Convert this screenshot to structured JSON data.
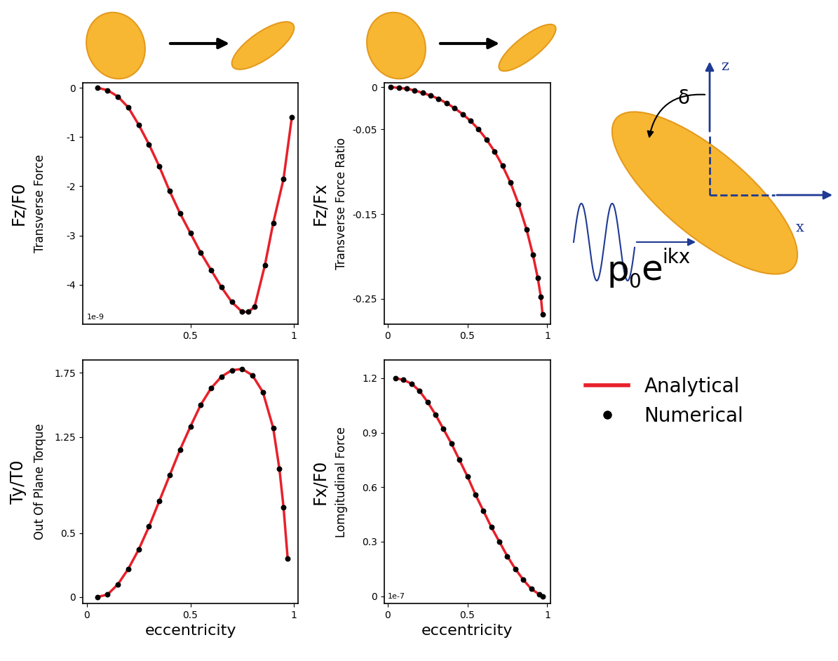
{
  "chart_data": [
    {
      "type": "line",
      "y_quantity": "Fz/F0",
      "ylabel": "Transverse Force",
      "annotation": "1e-9",
      "x": [
        0.05,
        0.1,
        0.15,
        0.2,
        0.25,
        0.3,
        0.35,
        0.4,
        0.45,
        0.5,
        0.55,
        0.6,
        0.65,
        0.7,
        0.75,
        0.78,
        0.81,
        0.86,
        0.9,
        0.95,
        0.99
      ],
      "series": [
        {
          "name": "Analytical",
          "type": "line",
          "color": "#e8202a",
          "values": [
            0,
            -0.05,
            -0.18,
            -0.4,
            -0.75,
            -1.15,
            -1.6,
            -2.1,
            -2.55,
            -2.95,
            -3.35,
            -3.7,
            -4.05,
            -4.35,
            -4.55,
            -4.55,
            -4.45,
            -3.6,
            -2.75,
            -1.85,
            -0.6
          ]
        },
        {
          "name": "Numerical",
          "type": "scatter",
          "color": "#000000",
          "marker": "o",
          "values": [
            0,
            -0.05,
            -0.18,
            -0.4,
            -0.75,
            -1.15,
            -1.6,
            -2.1,
            -2.55,
            -2.95,
            -3.35,
            -3.7,
            -4.05,
            -4.35,
            -4.55,
            -4.55,
            -4.45,
            -3.6,
            -2.75,
            -1.85,
            -0.6
          ]
        }
      ],
      "xlim": [
        -0.02,
        1.02
      ],
      "xticks": [
        0.5,
        1
      ],
      "ylim": [
        -4.8,
        0.1
      ],
      "yticks": [
        0,
        -1,
        -2,
        -3,
        -4
      ]
    },
    {
      "type": "line",
      "y_quantity": "Fz/Fx",
      "ylabel": "Transverse Force Ratio",
      "x": [
        0.02,
        0.07,
        0.12,
        0.17,
        0.22,
        0.27,
        0.32,
        0.37,
        0.42,
        0.47,
        0.52,
        0.57,
        0.62,
        0.67,
        0.72,
        0.77,
        0.82,
        0.87,
        0.91,
        0.94,
        0.96,
        0.97
      ],
      "series": [
        {
          "name": "Analytical",
          "type": "line",
          "color": "#e8202a",
          "values": [
            0,
            -0.001,
            -0.002,
            -0.004,
            -0.007,
            -0.01,
            -0.014,
            -0.019,
            -0.025,
            -0.032,
            -0.04,
            -0.05,
            -0.062,
            -0.076,
            -0.093,
            -0.113,
            -0.138,
            -0.168,
            -0.198,
            -0.225,
            -0.248,
            -0.268
          ]
        },
        {
          "name": "Numerical",
          "type": "scatter",
          "color": "#000000",
          "marker": "o",
          "values": [
            0,
            -0.001,
            -0.002,
            -0.004,
            -0.007,
            -0.01,
            -0.014,
            -0.019,
            -0.025,
            -0.032,
            -0.04,
            -0.05,
            -0.062,
            -0.076,
            -0.093,
            -0.113,
            -0.138,
            -0.168,
            -0.198,
            -0.225,
            -0.248,
            -0.268
          ]
        }
      ],
      "xlim": [
        -0.02,
        1.02
      ],
      "xticks": [
        0,
        0.5,
        1
      ],
      "ylim": [
        -0.28,
        0.005
      ],
      "yticks": [
        0,
        -0.05,
        -0.15,
        -0.25
      ]
    },
    {
      "type": "line",
      "y_quantity": "Ty/T0",
      "ylabel": "Out Of Plane Torque",
      "xlabel": "eccentricity",
      "x": [
        0.05,
        0.1,
        0.15,
        0.2,
        0.25,
        0.3,
        0.35,
        0.4,
        0.45,
        0.5,
        0.55,
        0.6,
        0.65,
        0.7,
        0.75,
        0.8,
        0.85,
        0.9,
        0.93,
        0.95,
        0.97
      ],
      "series": [
        {
          "name": "Analytical",
          "type": "line",
          "color": "#e8202a",
          "values": [
            0.0,
            0.02,
            0.1,
            0.22,
            0.37,
            0.55,
            0.75,
            0.95,
            1.15,
            1.33,
            1.5,
            1.63,
            1.72,
            1.77,
            1.78,
            1.73,
            1.6,
            1.32,
            1.0,
            0.7,
            0.3
          ]
        },
        {
          "name": "Numerical",
          "type": "scatter",
          "color": "#000000",
          "marker": "o",
          "values": [
            0.0,
            0.02,
            0.1,
            0.22,
            0.37,
            0.55,
            0.75,
            0.95,
            1.15,
            1.33,
            1.5,
            1.63,
            1.72,
            1.77,
            1.78,
            1.73,
            1.6,
            1.32,
            1.0,
            0.7,
            0.3
          ]
        }
      ],
      "xlim": [
        -0.02,
        1.02
      ],
      "xticks": [
        0,
        0.5,
        1
      ],
      "ylim": [
        -0.05,
        1.85
      ],
      "yticks": [
        0,
        0.5,
        1.25,
        1.75
      ]
    },
    {
      "type": "line",
      "y_quantity": "Fx/F0",
      "ylabel": "Lomgitudinal Force",
      "xlabel": "eccentricity",
      "annotation": "1e-7",
      "x": [
        0.05,
        0.1,
        0.15,
        0.2,
        0.25,
        0.3,
        0.35,
        0.4,
        0.45,
        0.5,
        0.55,
        0.6,
        0.65,
        0.7,
        0.75,
        0.8,
        0.85,
        0.9,
        0.95,
        0.97
      ],
      "series": [
        {
          "name": "Analytical",
          "type": "line",
          "color": "#e8202a",
          "values": [
            1.2,
            1.19,
            1.17,
            1.13,
            1.07,
            1.0,
            0.92,
            0.84,
            0.75,
            0.66,
            0.56,
            0.47,
            0.38,
            0.3,
            0.22,
            0.15,
            0.09,
            0.04,
            0.01,
            0.0
          ]
        },
        {
          "name": "Numerical",
          "type": "scatter",
          "color": "#000000",
          "marker": "o",
          "values": [
            1.2,
            1.19,
            1.17,
            1.13,
            1.07,
            1.0,
            0.92,
            0.84,
            0.75,
            0.66,
            0.56,
            0.47,
            0.38,
            0.3,
            0.22,
            0.15,
            0.09,
            0.04,
            0.01,
            0.0
          ]
        }
      ],
      "xlim": [
        -0.02,
        1.02
      ],
      "xticks": [
        0,
        0.5,
        1
      ],
      "ylim": [
        -0.04,
        1.3
      ],
      "yticks": [
        0,
        0.3,
        0.6,
        0.9,
        1.2
      ]
    }
  ],
  "diagram": {
    "z_label": "z",
    "x_label": "x",
    "angle_label": "δ",
    "wave_label": [
      "p",
      "0",
      "e",
      "ikx"
    ]
  }
}
